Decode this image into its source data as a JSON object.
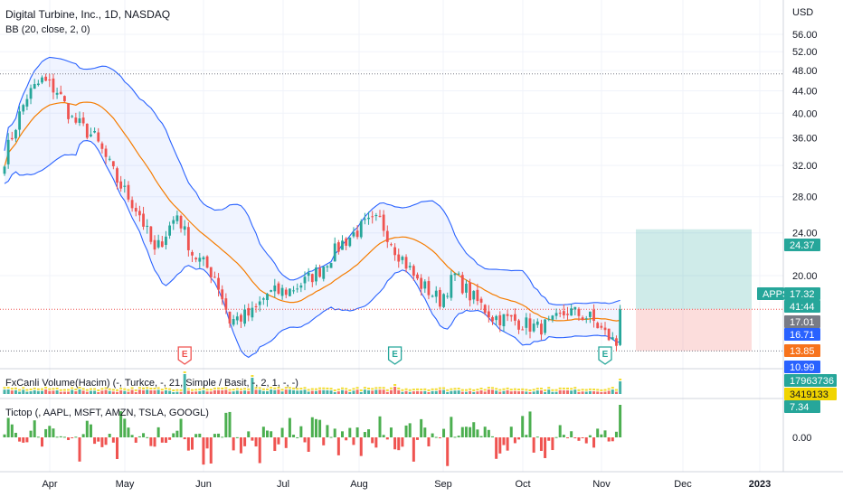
{
  "header": {
    "symbol_title": "Digital Turbine, Inc., 1D, NASDAQ",
    "indicator_bb": "BB (20, close, 2, 0)",
    "currency": "USD"
  },
  "volume_pane": {
    "legend": "FxCanli Volume(Hacim) (-, Turkce, -, 21, Simple / Basit, -, 2, 1, -, -)",
    "badges": [
      {
        "text": "17963736",
        "color": "#26a69a",
        "text_color": "#ffffff"
      },
      {
        "text": "3419133",
        "color": "#f0d400",
        "text_color": "#131722"
      }
    ]
  },
  "tictop_pane": {
    "legend": "Tictop (, AAPL, MSFT, AMZN, TSLA, GOOGL)",
    "badge": {
      "text": "7.34",
      "color": "#26a69a",
      "text_color": "#ffffff"
    },
    "tick": "0.00"
  },
  "price_badges": [
    {
      "text": "24.37",
      "color": "#26a69a",
      "text_color": "#ffffff"
    },
    {
      "text": "APPS",
      "color": "#26a69a",
      "text_color": "#ffffff"
    },
    {
      "text": "17.32",
      "color": "#26a69a",
      "text_color": "#ffffff"
    },
    {
      "text": "41:44",
      "color": "#26a69a",
      "text_color": "#ffffff"
    },
    {
      "text": "17.01",
      "color": "#787b86",
      "text_color": "#ffffff"
    },
    {
      "text": "16.71",
      "color": "#2962ff",
      "text_color": "#ffffff"
    },
    {
      "text": "13.85",
      "color": "#f7731c",
      "text_color": "#ffffff"
    },
    {
      "text": "10.99",
      "color": "#2962ff",
      "text_color": "#ffffff"
    }
  ],
  "earnings_markers": [
    {
      "label": "E",
      "color": "#ef5350",
      "date_index": 48
    },
    {
      "label": "E",
      "color": "#26a69a",
      "date_index": 104
    },
    {
      "label": "E",
      "color": "#26a69a",
      "date_index": 160
    }
  ],
  "chart_data": {
    "type": "candlestick",
    "title": "Digital Turbine, Inc., 1D, NASDAQ",
    "y_axis": {
      "ticks": [
        "56.00",
        "52.00",
        "48.00",
        "44.00",
        "40.00",
        "36.00",
        "32.00",
        "28.00",
        "24.00",
        "20.00"
      ],
      "tick_values": [
        56,
        52,
        48,
        44,
        40,
        36,
        32,
        28,
        24,
        20
      ],
      "scale": "log",
      "range": [
        10.5,
        58
      ]
    },
    "x_axis": {
      "labels": [
        "Apr",
        "May",
        "Jun",
        "Jul",
        "Aug",
        "Sep",
        "Oct",
        "Nov",
        "Dec",
        "2023"
      ]
    },
    "horizontal_markers": [
      {
        "name": "dotted-high",
        "value": 47.3
      },
      {
        "name": "last-price",
        "value": 17.32
      },
      {
        "name": "dotted-low",
        "value": 14.5
      }
    ],
    "position_tool": {
      "entry": 17.32,
      "target": 24.37,
      "stop": 14.5
    },
    "price_path_keypoints": [
      [
        0,
        33
      ],
      [
        6,
        43
      ],
      [
        10,
        46
      ],
      [
        14,
        44
      ],
      [
        18,
        39
      ],
      [
        24,
        36
      ],
      [
        30,
        30
      ],
      [
        36,
        26
      ],
      [
        40,
        22
      ],
      [
        46,
        26
      ],
      [
        50,
        22
      ],
      [
        56,
        20
      ],
      [
        60,
        16.5
      ],
      [
        66,
        17
      ],
      [
        70,
        18.5
      ],
      [
        76,
        18.8
      ],
      [
        80,
        19.5
      ],
      [
        84,
        20.5
      ],
      [
        90,
        23
      ],
      [
        96,
        24.8
      ],
      [
        100,
        25.3
      ],
      [
        104,
        22.5
      ],
      [
        110,
        19.5
      ],
      [
        116,
        18
      ],
      [
        120,
        20
      ],
      [
        124,
        18.4
      ],
      [
        130,
        16.8
      ],
      [
        136,
        16.5
      ],
      [
        142,
        16
      ],
      [
        146,
        16.3
      ],
      [
        150,
        17.2
      ],
      [
        156,
        16.7
      ],
      [
        160,
        15.6
      ],
      [
        163,
        14.9
      ],
      [
        164,
        17.32
      ]
    ],
    "series": [
      {
        "name": "BB basis",
        "color": "#f57c00"
      },
      {
        "name": "BB upper",
        "color": "#2962ff"
      },
      {
        "name": "BB lower",
        "color": "#2962ff"
      }
    ]
  }
}
